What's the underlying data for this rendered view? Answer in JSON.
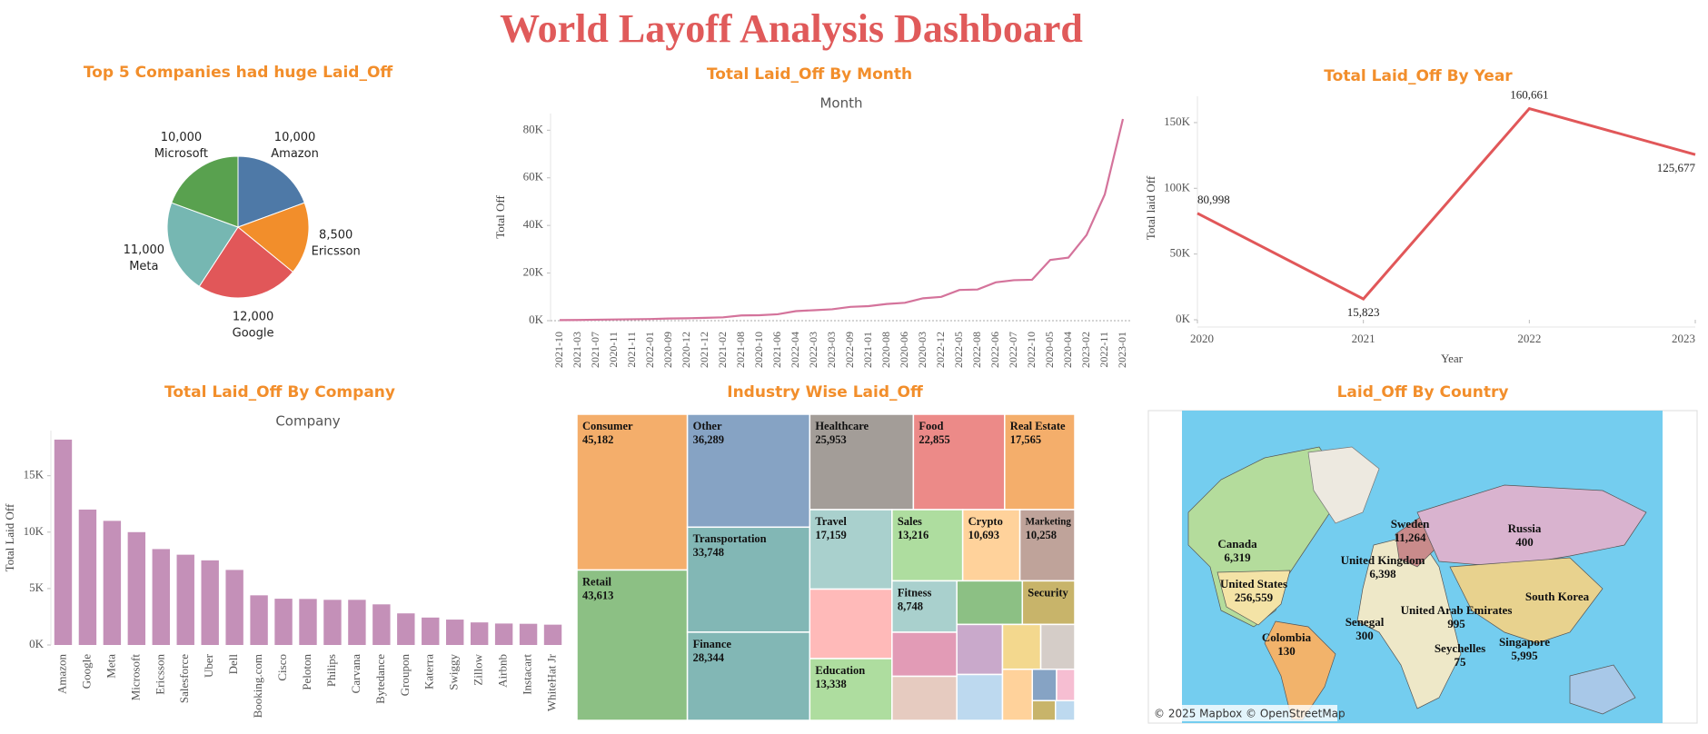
{
  "title": "World Layoff Analysis Dashboard",
  "chart_data": [
    {
      "type": "pie",
      "title": "Top 5  Companies had huge Laid_Off",
      "categories": [
        "Amazon",
        "Ericsson",
        "Google",
        "Meta",
        "Microsoft"
      ],
      "values": [
        10000,
        8500,
        12000,
        11000,
        10000
      ],
      "value_labels": [
        "10,000",
        "8,500",
        "12,000",
        "11,000",
        "10,000"
      ],
      "colors": [
        "#4e79a7",
        "#f28e2b",
        "#e15759",
        "#76b7b2",
        "#59a14f"
      ]
    },
    {
      "type": "line",
      "title": "Total Laid_Off By Month",
      "subtitle": "Month",
      "y_label": "Total Off",
      "categories": [
        "2021-10",
        "2021-03",
        "2021-07",
        "2020-11",
        "2021-11",
        "2022-01",
        "2020-09",
        "2020-12",
        "2021-12",
        "2021-02",
        "2021-08",
        "2020-10",
        "2021-06",
        "2022-04",
        "2022-03",
        "2023-03",
        "2022-09",
        "2021-01",
        "2020-08",
        "2020-06",
        "2020-03",
        "2022-12",
        "2022-05",
        "2022-08",
        "2022-06",
        "2022-07",
        "2022-10",
        "2020-05",
        "2020-04",
        "2023-02",
        "2022-11",
        "2023-01"
      ],
      "values": [
        250,
        300,
        400,
        500,
        600,
        700,
        900,
        1000,
        1200,
        1400,
        2200,
        2300,
        2700,
        4000,
        4400,
        4800,
        5800,
        6100,
        7000,
        7500,
        9400,
        10000,
        12900,
        13100,
        16100,
        17000,
        17200,
        25500,
        26500,
        36000,
        53000,
        84700
      ],
      "color": "#d4739b",
      "ylim": [
        0,
        87000
      ],
      "yticks": [
        {
          "value": 0,
          "label": "0K"
        },
        {
          "value": 20000,
          "label": "20K"
        },
        {
          "value": 40000,
          "label": "40K"
        },
        {
          "value": 60000,
          "label": "60K"
        },
        {
          "value": 80000,
          "label": "80K"
        }
      ],
      "zero_line": true
    },
    {
      "type": "line",
      "title": "Total Laid_Off By Year",
      "x_label": "Year",
      "y_label": "Total laid Off",
      "x": [
        2020,
        2021,
        2022,
        2023
      ],
      "values": [
        80998,
        15823,
        160661,
        125677
      ],
      "value_labels": [
        "80,998",
        "15,823",
        "160,661",
        "125,677"
      ],
      "color": "#e15759",
      "xlim": [
        2020,
        2023
      ],
      "xticks": [
        2020,
        2021,
        2022,
        2023
      ],
      "ylim": [
        0,
        170000
      ],
      "yticks": [
        {
          "value": 0,
          "label": "0K"
        },
        {
          "value": 50000,
          "label": "50K"
        },
        {
          "value": 100000,
          "label": "100K"
        },
        {
          "value": 150000,
          "label": "150K"
        }
      ]
    },
    {
      "type": "bar",
      "title": "Total Laid_Off By Company",
      "subtitle": "Company",
      "y_label": "Total Laid Off",
      "categories": [
        "Amazon",
        "Google",
        "Meta",
        "Microsoft",
        "Ericsson",
        "Salesforce",
        "Uber",
        "Dell",
        "Booking.com",
        "Cisco",
        "Peloton",
        "Philips",
        "Carvana",
        "Bytedance",
        "Groupon",
        "Katerra",
        "Swiggy",
        "Zillow",
        "Airbnb",
        "Instacart",
        "WhiteHat Jr"
      ],
      "values": [
        18200,
        12000,
        11000,
        10000,
        8500,
        8000,
        7500,
        6650,
        4400,
        4100,
        4080,
        4000,
        4000,
        3600,
        2800,
        2430,
        2250,
        2000,
        1900,
        1877,
        1800
      ],
      "color": "#c490b8",
      "ylim": [
        0,
        19000
      ],
      "yticks": [
        {
          "value": 0,
          "label": "0K"
        },
        {
          "value": 5000,
          "label": "5K"
        },
        {
          "value": 10000,
          "label": "10K"
        },
        {
          "value": 15000,
          "label": "15K"
        }
      ]
    },
    {
      "type": "treemap",
      "title": "Industry Wise Laid_Off",
      "categories": [
        "Consumer",
        "Retail",
        "Other",
        "Transportation",
        "Finance",
        "Healthcare",
        "Food",
        "Real Estate",
        "Travel",
        null,
        "Education",
        "Sales",
        "Crypto",
        "Marketing",
        "Fitness",
        null,
        null,
        null,
        "Security",
        null,
        null,
        null,
        null,
        null,
        null,
        null,
        null,
        null
      ],
      "values": [
        45182,
        43613,
        36289,
        33748,
        28344,
        25953,
        22855,
        17565,
        17159,
        15000,
        13338,
        13216,
        10693,
        10258,
        8748,
        7500,
        7500,
        7500,
        6000,
        6000,
        5500,
        4500,
        4000,
        4000,
        2000,
        1500,
        1200,
        1000
      ],
      "value_labels": [
        "45,182",
        "43,613",
        "36,289",
        "33,748",
        "28,344",
        "25,953",
        "22,855",
        "17,565",
        "17,159",
        null,
        "13,338",
        "13,216",
        "10,693",
        "10,258",
        "8,748",
        null,
        null,
        null,
        null,
        null,
        null,
        null,
        null,
        null,
        null,
        null,
        null,
        null
      ],
      "colors": [
        "#f4ae6b",
        "#8cc084",
        "#86a3c4",
        "#82b7b5",
        "#82b7b5",
        "#a39d98",
        "#ec8a88",
        "#f4ae6b",
        "#a9d0cd",
        "#ffbab9",
        "#aedd9f",
        "#aedd9f",
        "#ffd29b",
        "#bfa39a",
        "#a9d0cd",
        "#e29bb6",
        "#e6cbc0",
        "#8cc084",
        "#c8b46a",
        "#c9a9cb",
        "#bdd9ef",
        "#f3d88e",
        "#d5cdc8",
        "#ffd29b",
        "#86a3c4",
        "#f6bed2",
        "#c8b46a",
        "#bdd9ef"
      ]
    },
    {
      "type": "map",
      "title": "Laid_Off By Country",
      "categories": [
        "Canada",
        "United States",
        "United Kingdom",
        "Sweden",
        "Russia",
        "Senegal",
        "United Arab Emirates",
        "South Korea",
        "Colombia",
        "Seychelles",
        "Singapore"
      ],
      "values": [
        6319,
        256559,
        6398,
        11264,
        400,
        300,
        995,
        null,
        130,
        75,
        5995
      ],
      "value_labels": [
        "6,319",
        "256,559",
        "6,398",
        "11,264",
        "400",
        "300",
        "995",
        null,
        "130",
        "75",
        "5,995"
      ],
      "attribution": "© 2025 Mapbox © OpenStreetMap"
    }
  ]
}
